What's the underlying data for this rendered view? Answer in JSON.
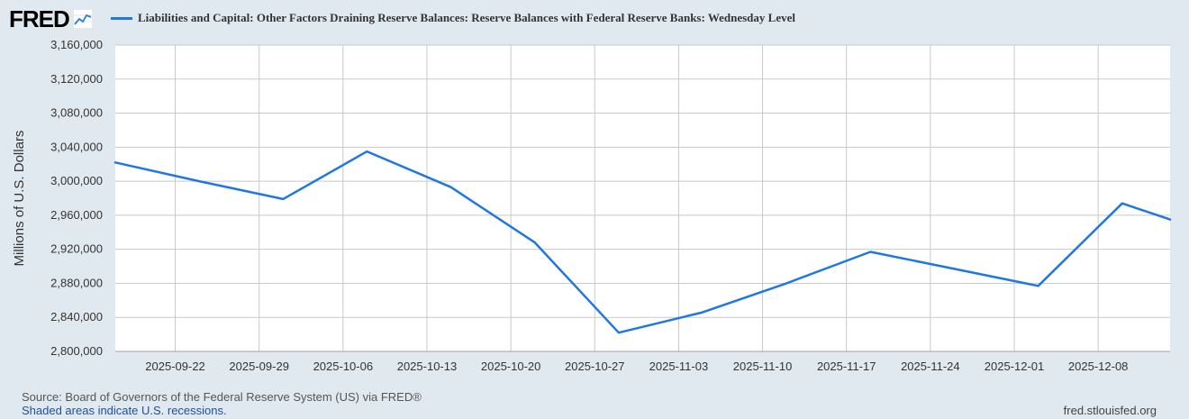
{
  "header": {
    "logo_text": "FRED",
    "logo_icon": "trend-line-icon"
  },
  "chart_data": {
    "type": "line",
    "title": "",
    "ylabel": "Millions of U.S. Dollars",
    "xlabel": "",
    "ylim": [
      2800000,
      3160000
    ],
    "xlim": [
      "2025-09-17",
      "2025-12-14"
    ],
    "yticks": [
      2800000,
      2840000,
      2880000,
      2920000,
      2960000,
      3000000,
      3040000,
      3080000,
      3120000,
      3160000
    ],
    "ytick_labels": [
      "2,800,000",
      "2,840,000",
      "2,880,000",
      "2,920,000",
      "2,960,000",
      "3,000,000",
      "3,040,000",
      "3,080,000",
      "3,120,000",
      "3,160,000"
    ],
    "xticks": [
      "2025-09-22",
      "2025-09-29",
      "2025-10-06",
      "2025-10-13",
      "2025-10-20",
      "2025-10-27",
      "2025-11-03",
      "2025-11-10",
      "2025-11-17",
      "2025-11-24",
      "2025-12-01",
      "2025-12-08"
    ],
    "xtick_labels": [
      "2025-09-22",
      "2025-09-29",
      "2025-10-06",
      "2025-10-13",
      "2025-10-20",
      "2025-10-27",
      "2025-11-03",
      "2025-11-10",
      "2025-11-17",
      "2025-11-24",
      "2025-12-01",
      "2025-12-08"
    ],
    "grid": true,
    "legend_position": "top",
    "series": [
      {
        "name": "Liabilities and Capital: Other Factors Draining Reserve Balances: Reserve Balances with Federal Reserve Banks: Wednesday Level",
        "color": "#1f77e6",
        "x": [
          "2025-09-17",
          "2025-09-24",
          "2025-10-01",
          "2025-10-08",
          "2025-10-15",
          "2025-10-22",
          "2025-10-29",
          "2025-11-05",
          "2025-11-12",
          "2025-11-19",
          "2025-11-26",
          "2025-12-03",
          "2025-12-10",
          "2025-12-14"
        ],
        "y": [
          3022000,
          3000000,
          2979000,
          3035000,
          2993000,
          2928000,
          2822000,
          2846000,
          2880000,
          2917000,
          2897000,
          2877000,
          2974000,
          2955000
        ]
      }
    ]
  },
  "footer": {
    "source": "Source: Board of Governors of the Federal Reserve System (US) via FRED®",
    "note": "Shaded areas indicate U.S. recessions.",
    "url": "fred.stlouisfed.org"
  }
}
